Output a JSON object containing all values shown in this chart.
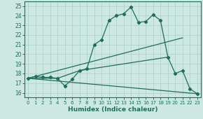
{
  "xlabel": "Humidex (Indice chaleur)",
  "xlim": [
    -0.5,
    23.5
  ],
  "ylim": [
    15.5,
    25.5
  ],
  "xticks": [
    0,
    1,
    2,
    3,
    4,
    5,
    6,
    7,
    8,
    9,
    10,
    11,
    12,
    13,
    14,
    15,
    16,
    17,
    18,
    19,
    20,
    21,
    22,
    23
  ],
  "yticks": [
    16,
    17,
    18,
    19,
    20,
    21,
    22,
    23,
    24,
    25
  ],
  "bg_color": "#cce8e0",
  "line_color": "#1e6e5e",
  "grid_color": "#aacfc5",
  "curve": {
    "x": [
      0,
      1,
      2,
      3,
      4,
      5,
      6,
      7,
      8,
      9,
      10,
      11,
      12,
      13,
      14,
      15,
      16,
      17,
      18,
      19,
      20,
      21,
      22,
      23
    ],
    "y": [
      17.5,
      17.7,
      17.6,
      17.6,
      17.5,
      16.7,
      17.4,
      18.3,
      18.5,
      21.0,
      21.5,
      23.5,
      24.0,
      24.2,
      24.9,
      23.3,
      23.4,
      24.1,
      23.5,
      19.7,
      18.0,
      18.3,
      16.4,
      15.9
    ]
  },
  "straight_lines": [
    {
      "x": [
        0,
        23
      ],
      "y": [
        17.5,
        15.9
      ]
    },
    {
      "x": [
        0,
        21
      ],
      "y": [
        17.5,
        21.7
      ]
    },
    {
      "x": [
        0,
        4,
        7,
        19
      ],
      "y": [
        17.5,
        17.5,
        18.3,
        19.7
      ]
    }
  ]
}
